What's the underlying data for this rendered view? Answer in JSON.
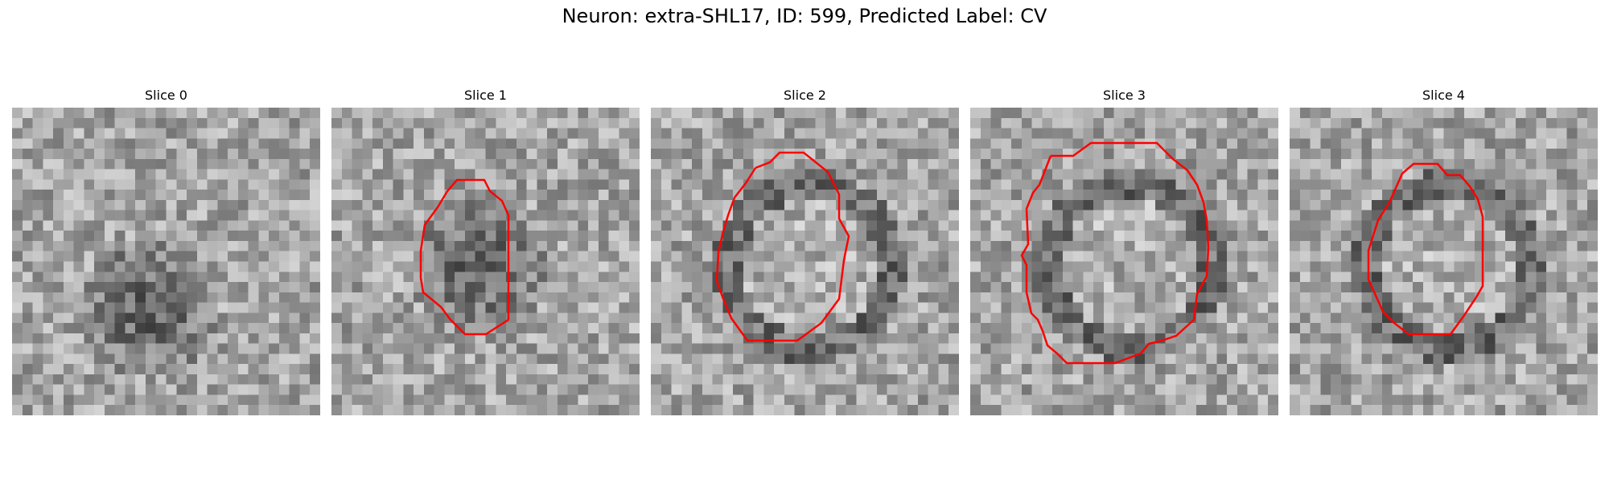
{
  "figure": {
    "title": "Neuron: extra-SHL17, ID: 599, Predicted Label: CV"
  },
  "panels": [
    {
      "title": "Slice 0",
      "has_contour": false
    },
    {
      "title": "Slice 1",
      "has_contour": true
    },
    {
      "title": "Slice 2",
      "has_contour": true
    },
    {
      "title": "Slice 3",
      "has_contour": true
    },
    {
      "title": "Slice 4",
      "has_contour": true
    }
  ],
  "colors": {
    "contour": "#ff0000"
  }
}
